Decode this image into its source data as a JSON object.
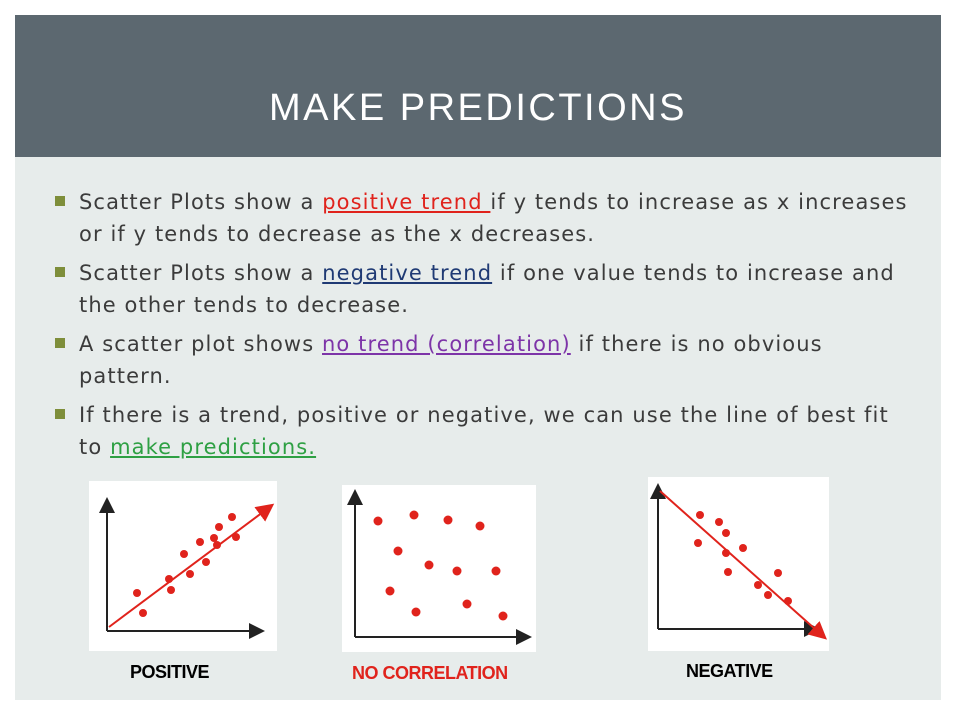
{
  "title": "MAKE PREDICTIONS",
  "bullets": [
    {
      "pre": "Scatter Plots show a ",
      "highlight": "positive trend ",
      "post": "if y tends to increase as x increases or if y tends to decrease as the x decreases.",
      "highlight_color": "#e0231c"
    },
    {
      "pre": "Scatter Plots show a ",
      "highlight": "negative trend",
      "post": " if one value tends to increase and the other tends to decrease.",
      "highlight_color": "#1f3a74"
    },
    {
      "pre": "A scatter plot shows ",
      "highlight": "no trend (correlation)",
      "post": " if there is no obvious pattern.",
      "highlight_color": "#7d34a8"
    },
    {
      "pre": "If there is a trend, positive or negative, we can use the line of best fit to ",
      "highlight": "make predictions.",
      "post": "",
      "highlight_color": "#2ea043"
    }
  ],
  "plots": {
    "positive": {
      "label": "POSITIVE",
      "label_color": "#000000"
    },
    "no_correlation": {
      "label": "NO CORRELATION",
      "label_color": "#e0231c"
    },
    "negative": {
      "label": "NEGATIVE",
      "label_color": "#000000"
    }
  },
  "colors": {
    "title_bar": "#5c6870",
    "content_bg": "#e7eceb",
    "bullet_mark": "#7e8e3a",
    "dot": "#e0231c",
    "trend_line": "#e0231c"
  }
}
